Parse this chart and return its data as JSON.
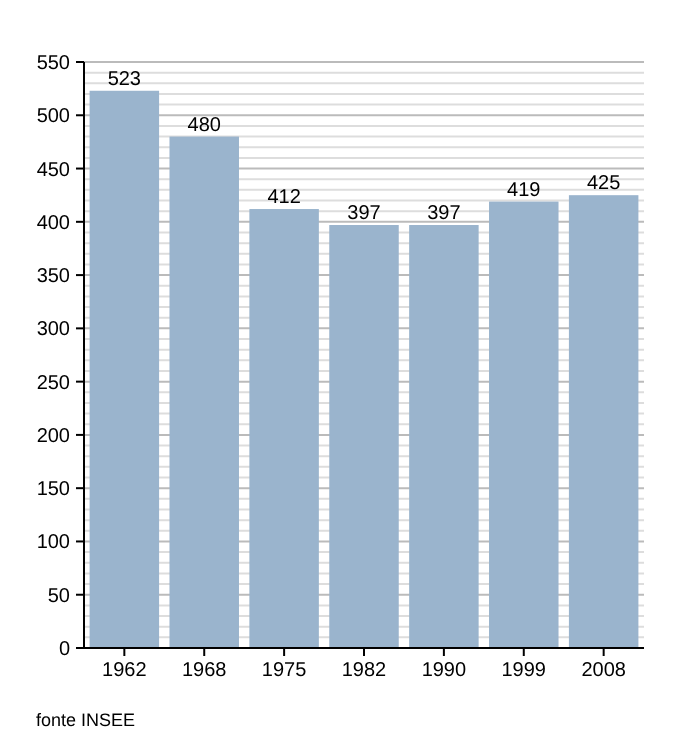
{
  "chart_data": {
    "type": "bar",
    "categories": [
      "1962",
      "1968",
      "1975",
      "1982",
      "1990",
      "1999",
      "2008"
    ],
    "values": [
      523,
      480,
      412,
      397,
      397,
      419,
      425
    ],
    "color": "#9ab4cd",
    "ylim": [
      0,
      550
    ],
    "yticks": [
      0,
      {
        "value": 10,
        "label": null
      },
      {
        "value": 20,
        "label": null
      },
      {
        "value": 30,
        "label": null
      },
      {
        "value": 40,
        "label": null
      },
      50,
      {
        "value": 60,
        "label": null
      },
      {
        "value": 70,
        "label": null
      },
      {
        "value": 80,
        "label": null
      },
      {
        "value": 90,
        "label": null
      },
      100,
      {
        "value": 110,
        "label": null
      },
      {
        "value": 120,
        "label": null
      },
      {
        "value": 130,
        "label": null
      },
      {
        "value": 140,
        "label": null
      },
      150,
      {
        "value": 160,
        "label": null
      },
      {
        "value": 170,
        "label": null
      },
      {
        "value": 180,
        "label": null
      },
      {
        "value": 190,
        "label": null
      },
      200,
      {
        "value": 210,
        "label": null
      },
      {
        "value": 220,
        "label": null
      },
      {
        "value": 230,
        "label": null
      },
      {
        "value": 240,
        "label": null
      },
      250,
      {
        "value": 260,
        "label": null
      },
      {
        "value": 270,
        "label": null
      },
      {
        "value": 280,
        "label": null
      },
      {
        "value": 290,
        "label": null
      },
      300,
      {
        "value": 310,
        "label": null
      },
      {
        "value": 320,
        "label": null
      },
      {
        "value": 330,
        "label": null
      },
      {
        "value": 340,
        "label": null
      },
      350,
      {
        "value": 360,
        "label": null
      },
      {
        "value": 370,
        "label": null
      },
      {
        "value": 380,
        "label": null
      },
      {
        "value": 390,
        "label": null
      },
      400,
      {
        "value": 410,
        "label": null
      },
      {
        "value": 420,
        "label": null
      },
      {
        "value": 430,
        "label": null
      },
      {
        "value": 440,
        "label": null
      },
      450,
      {
        "value": 460,
        "label": null
      },
      {
        "value": 470,
        "label": null
      },
      {
        "value": 480,
        "label": null
      },
      {
        "value": 490,
        "label": null
      },
      500,
      {
        "value": 510,
        "label": null
      },
      {
        "value": 520,
        "label": null
      },
      {
        "value": 530,
        "label": null
      },
      {
        "value": 540,
        "label": null
      },
      550
    ],
    "grid": "y",
    "data_labels": true,
    "annotations": [
      "fonte INSEE"
    ]
  }
}
